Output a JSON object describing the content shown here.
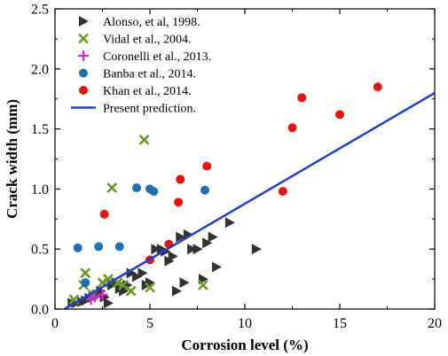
{
  "chart_data": {
    "type": "scatter",
    "xlabel": "Corrosion level  (%)",
    "ylabel": "Crack width (mm)",
    "xlim": [
      0,
      20
    ],
    "ylim": [
      0,
      2.5
    ],
    "xticks": [
      0,
      5,
      10,
      15,
      20
    ],
    "yticks": [
      0.0,
      0.5,
      1.0,
      1.5,
      2.0,
      2.5
    ],
    "xtick_labels": [
      "0",
      "5",
      "10",
      "15",
      "20"
    ],
    "ytick_labels": [
      "0.0",
      "0.5",
      "1.0",
      "1.5",
      "2.0",
      "2.5"
    ],
    "grid": false,
    "legend_position": "top-left",
    "series": [
      {
        "name": "Alonso, et al, 1998.",
        "marker": "triangle-right",
        "color": "#333333",
        "points": [
          [
            0.9,
            0.05
          ],
          [
            1.1,
            0.05
          ],
          [
            1.4,
            0.06
          ],
          [
            1.6,
            0.07
          ],
          [
            1.8,
            0.09
          ],
          [
            2.0,
            0.1
          ],
          [
            2.2,
            0.12
          ],
          [
            2.4,
            0.15
          ],
          [
            2.6,
            0.1
          ],
          [
            2.8,
            0.05
          ],
          [
            3.0,
            0.2
          ],
          [
            3.2,
            0.22
          ],
          [
            3.4,
            0.17
          ],
          [
            3.6,
            0.15
          ],
          [
            3.8,
            0.2
          ],
          [
            4.0,
            0.3
          ],
          [
            4.3,
            0.27
          ],
          [
            4.6,
            0.3
          ],
          [
            4.8,
            0.2
          ],
          [
            5.0,
            0.22
          ],
          [
            5.3,
            0.5
          ],
          [
            5.6,
            0.5
          ],
          [
            5.8,
            0.48
          ],
          [
            6.0,
            0.4
          ],
          [
            6.2,
            0.44
          ],
          [
            6.4,
            0.15
          ],
          [
            6.6,
            0.6
          ],
          [
            6.8,
            0.22
          ],
          [
            7.0,
            0.62
          ],
          [
            7.2,
            0.5
          ],
          [
            7.5,
            0.5
          ],
          [
            7.8,
            0.25
          ],
          [
            8.0,
            0.55
          ],
          [
            8.3,
            0.6
          ],
          [
            8.5,
            0.35
          ],
          [
            9.2,
            0.72
          ],
          [
            10.6,
            0.5
          ]
        ]
      },
      {
        "name": "Vidal et al., 2004.",
        "marker": "x",
        "color": "#6a9a1f",
        "points": [
          [
            1.0,
            0.08
          ],
          [
            1.5,
            0.2
          ],
          [
            1.6,
            0.3
          ],
          [
            2.0,
            0.12
          ],
          [
            2.5,
            0.22
          ],
          [
            2.8,
            0.25
          ],
          [
            3.0,
            1.01
          ],
          [
            3.3,
            0.22
          ],
          [
            3.6,
            0.2
          ],
          [
            4.0,
            0.15
          ],
          [
            4.7,
            1.41
          ],
          [
            5.0,
            0.18
          ],
          [
            7.8,
            0.2
          ]
        ]
      },
      {
        "name": "Coronelli et al., 2013.",
        "marker": "plus",
        "color": "#dd22dd",
        "points": [
          [
            1.9,
            0.08
          ],
          [
            2.1,
            0.1
          ],
          [
            2.5,
            0.12
          ]
        ]
      },
      {
        "name": "Banba et al., 2014.",
        "marker": "circle",
        "color": "#1f6fb4",
        "points": [
          [
            1.2,
            0.51
          ],
          [
            1.6,
            0.22
          ],
          [
            2.3,
            0.52
          ],
          [
            3.4,
            0.52
          ],
          [
            4.3,
            1.01
          ],
          [
            5.0,
            1.0
          ],
          [
            5.2,
            0.98
          ],
          [
            7.9,
            0.99
          ]
        ]
      },
      {
        "name": "Khan et al., 2014.",
        "marker": "circle",
        "color": "#ee1111",
        "points": [
          [
            2.6,
            0.79
          ],
          [
            5.0,
            0.41
          ],
          [
            6.0,
            0.54
          ],
          [
            6.5,
            0.89
          ],
          [
            6.6,
            1.08
          ],
          [
            8.0,
            1.19
          ],
          [
            12.0,
            0.98
          ],
          [
            12.5,
            1.51
          ],
          [
            13.0,
            1.76
          ],
          [
            15.0,
            1.62
          ],
          [
            17.0,
            1.85
          ]
        ]
      },
      {
        "name": "Present prediction.",
        "marker": "line",
        "color": "#1e3fd8",
        "points": [
          [
            0.5,
            0.0
          ],
          [
            20.0,
            1.8
          ]
        ]
      }
    ]
  }
}
